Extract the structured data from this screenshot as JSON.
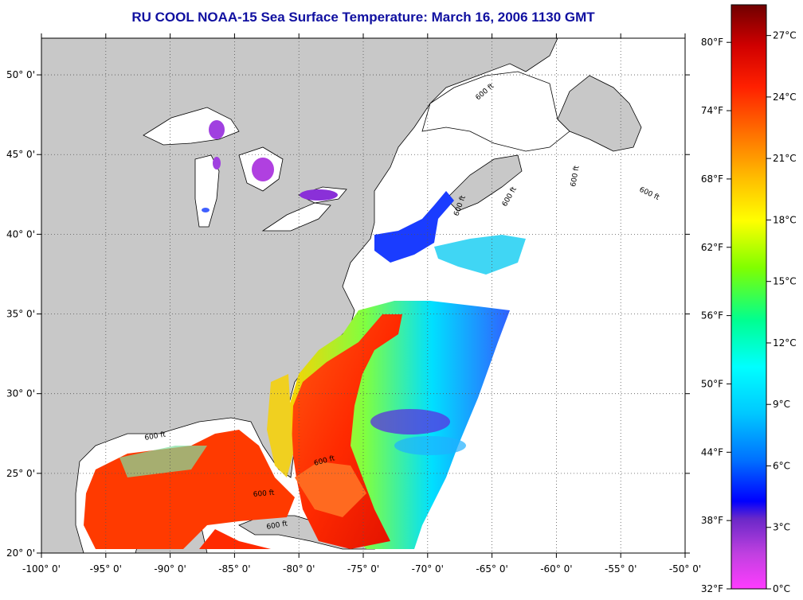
{
  "title": "RU COOL  NOAA-15  Sea Surface Temperature:  March 16, 2006 1130 GMT",
  "map": {
    "lon_range": [
      -100,
      -50
    ],
    "lat_range": [
      20,
      52.3
    ],
    "lon_ticks": [
      "-100° 0'",
      "-95° 0'",
      "-90° 0'",
      "-85° 0'",
      "-80° 0'",
      "-75° 0'",
      "-70° 0'",
      "-65° 0'",
      "-60° 0'",
      "-55° 0'",
      "-50° 0'"
    ],
    "lat_ticks": [
      "20° 0'",
      "25° 0'",
      "30° 0'",
      "35° 0'",
      "40° 0'",
      "45° 0'",
      "50° 0'"
    ],
    "contour_label": "600 ft",
    "colors": {
      "land": "#c8c8c8",
      "nodata": "#ffffff",
      "coast": "#000000"
    }
  },
  "colorbar": {
    "fahrenheit_labels": [
      "80°F",
      "74°F",
      "68°F",
      "62°F",
      "56°F",
      "50°F",
      "44°F",
      "38°F",
      "32°F"
    ],
    "celsius_labels": [
      "27°C",
      "24°C",
      "21°C",
      "18°C",
      "15°C",
      "12°C",
      "9°C",
      "6°C",
      "3°C",
      "0°C"
    ],
    "range_c": [
      0,
      28.5
    ],
    "colors": [
      "#ff3cff",
      "#c040e0",
      "#6a28c8",
      "#0000ff",
      "#0070ff",
      "#00c8ff",
      "#00ffff",
      "#00ff90",
      "#80ff00",
      "#ffff00",
      "#ffc000",
      "#ff7000",
      "#ff2000",
      "#d00000",
      "#700000"
    ]
  }
}
